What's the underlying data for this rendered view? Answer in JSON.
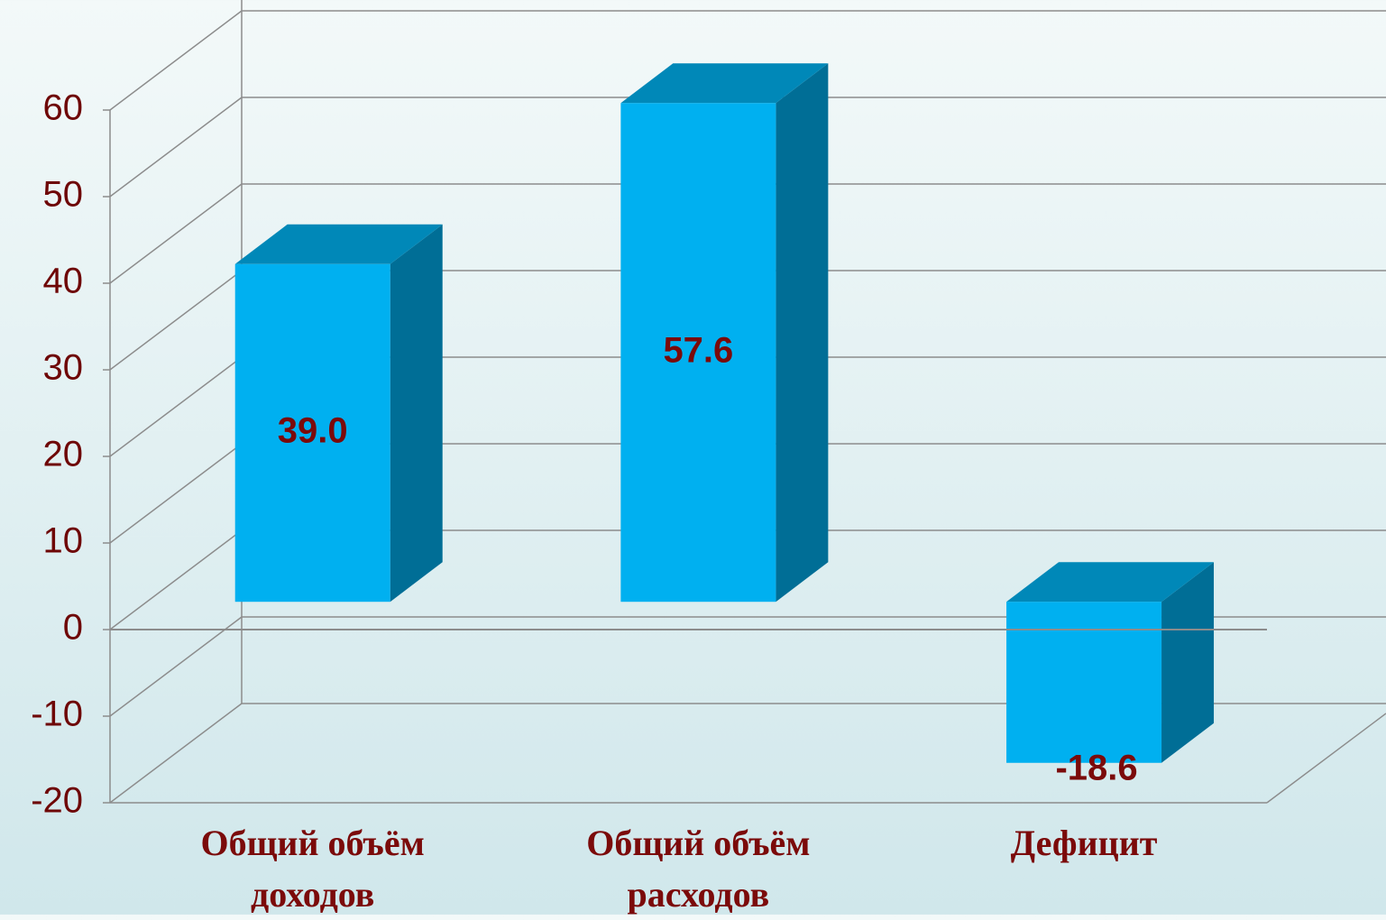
{
  "chart_data": {
    "type": "bar3d",
    "categories": [
      "Общий объём доходов",
      "Общий объём расходов",
      "Дефицит"
    ],
    "values": [
      39.0,
      57.6,
      -18.6
    ],
    "value_labels": [
      "39.0",
      "57.6",
      "-18.6"
    ],
    "colors": {
      "front": "#00b0f0",
      "side": "#006e96",
      "top": "#0088b8"
    },
    "ylim": [
      -20,
      60
    ],
    "yticks": [
      -20,
      -10,
      0,
      10,
      20,
      30,
      40,
      50,
      60
    ],
    "grid": true
  }
}
